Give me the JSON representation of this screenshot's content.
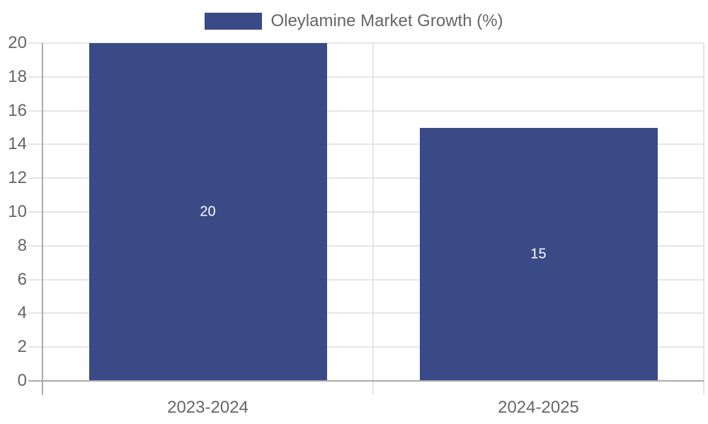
{
  "chart_data": {
    "type": "bar",
    "title": "",
    "xlabel": "",
    "ylabel": "",
    "categories": [
      "2023-2024",
      "2024-2025"
    ],
    "series": [
      {
        "name": "Oleylamine Market Growth (%)",
        "values": [
          20,
          15
        ]
      }
    ],
    "bar_value_labels": [
      "20",
      "15"
    ],
    "ylim": [
      0,
      20
    ],
    "ytick_step": 2,
    "ytick_labels": [
      "0",
      "2",
      "4",
      "6",
      "8",
      "10",
      "12",
      "14",
      "16",
      "18",
      "20"
    ],
    "legend": {
      "position": "top-center",
      "label": "Oleylamine Market Growth (%)"
    },
    "grid": true,
    "colors": {
      "bar": "#3a4a86",
      "bar_value_label": "#ffffff",
      "grid": "#e5e5e5",
      "axis": "#ababab",
      "tick_text": "#666666",
      "legend_text": "#666666",
      "background": "#ffffff"
    }
  }
}
